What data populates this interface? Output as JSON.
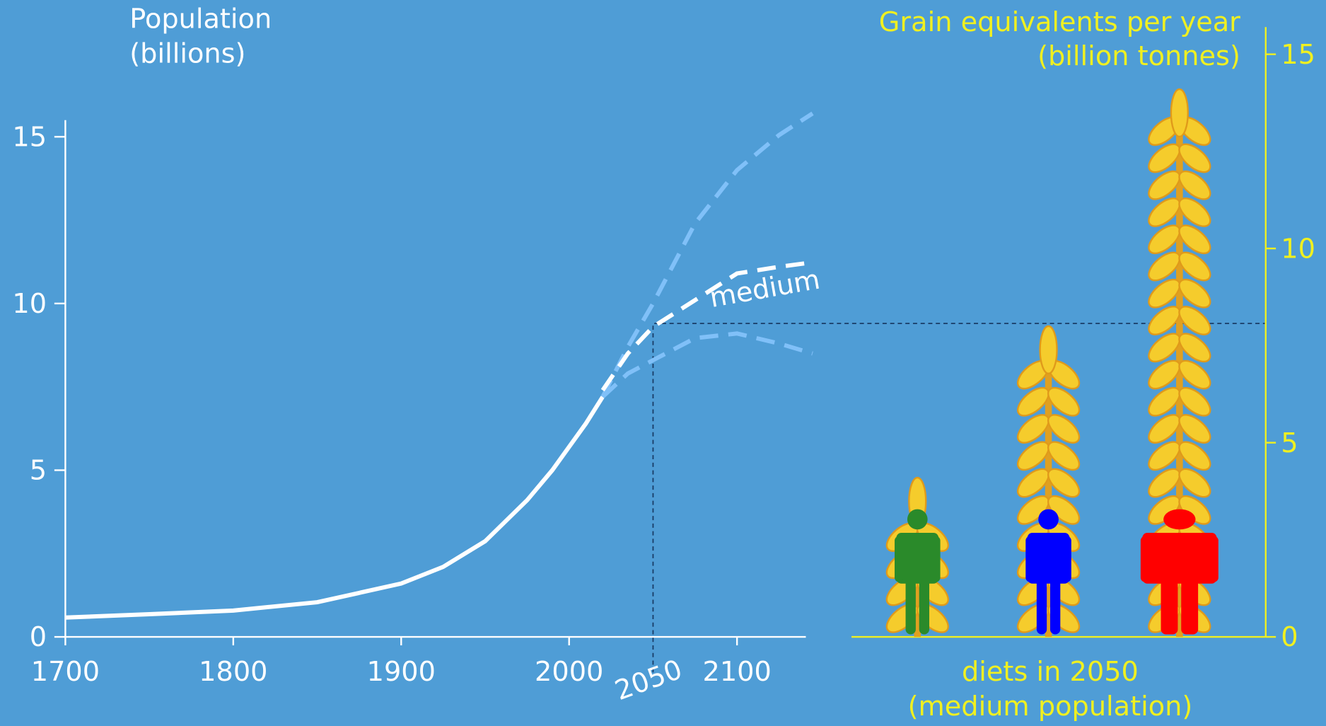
{
  "chart_data": [
    {
      "type": "line",
      "ylabel": [
        "Population",
        "(billions)"
      ],
      "xlim": [
        1700,
        2141
      ],
      "xticks": [
        1700,
        1800,
        1900,
        2000,
        2100
      ],
      "ylim": [
        0,
        15.5
      ],
      "yticks": [
        0,
        5,
        10,
        15
      ],
      "series": [
        {
          "color": "#ffffff",
          "dashed": false,
          "x": [
            1700,
            1750,
            1800,
            1850,
            1900,
            1925,
            1950,
            1975,
            1990,
            2000,
            2010,
            2020
          ],
          "values": [
            0.58,
            0.68,
            0.79,
            1.04,
            1.6,
            2.1,
            2.87,
            4.1,
            5.0,
            5.7,
            6.4,
            7.2
          ]
        },
        {
          "color": "#80c0f8",
          "dashed": true,
          "x": [
            2020,
            2035,
            2050,
            2075,
            2100,
            2125,
            2145
          ],
          "values": [
            7.2,
            8.7,
            10.0,
            12.4,
            14.0,
            15.05,
            15.7
          ]
        },
        {
          "color": "#80c0f8",
          "dashed": true,
          "x": [
            2020,
            2035,
            2050,
            2075,
            2100,
            2125,
            2145
          ],
          "values": [
            7.2,
            7.9,
            8.3,
            8.96,
            9.1,
            8.8,
            8.5
          ]
        },
        {
          "name": "medium",
          "color": "#ffffff",
          "dashed": true,
          "x": [
            2020,
            2035,
            2050,
            2075,
            2100,
            2125,
            2140
          ],
          "values": [
            7.4,
            8.5,
            9.3,
            10.1,
            10.9,
            11.1,
            11.2
          ]
        }
      ],
      "annotation": {
        "text": "2050",
        "x": 2050,
        "y": 9.4
      }
    },
    {
      "type": "bar",
      "ylabel": [
        "Grain equivalents per year",
        "(billion tonnes)"
      ],
      "xlabel": [
        "diets in 2050",
        "(medium population)"
      ],
      "ylim": [
        0,
        15.7
      ],
      "yticks": [
        0,
        5,
        10,
        15
      ],
      "axis_color": "#f0f020",
      "categories": [
        null,
        null,
        null
      ],
      "values": [
        4.1,
        8.0,
        14.1
      ],
      "colors": [
        "#2a8a2a",
        "#0000ff",
        "#ff0000"
      ]
    }
  ]
}
